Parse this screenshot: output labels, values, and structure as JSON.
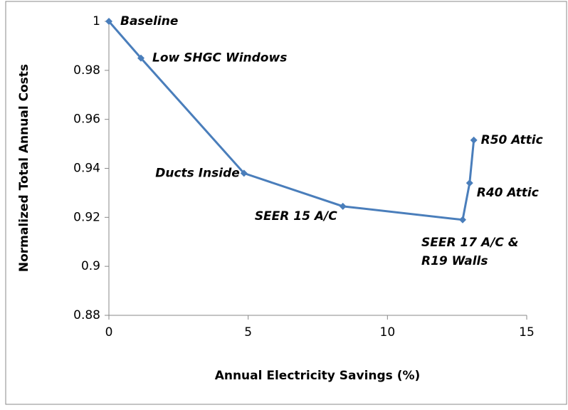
{
  "chart_data": {
    "type": "line",
    "x_label": "Annual Electricity Savings (%)",
    "y_label": "Normalized Total Annual Costs",
    "x": [
      0,
      1.15,
      4.85,
      8.4,
      12.7,
      12.95,
      13.1
    ],
    "series": [
      {
        "color": "#4a7ebb",
        "values": [
          1,
          0.985,
          0.938,
          0.9245,
          0.919,
          0.934,
          0.9515
        ]
      }
    ],
    "labels": [
      "Baseline",
      "Low SHGC Windows",
      "Ducts Inside",
      "SEER 15 A/C",
      "SEER 17 A/C &\nR19 Walls",
      "R40 Attic",
      "R50 Attic"
    ],
    "xlim": [
      0,
      15
    ],
    "xticks": [
      0,
      5,
      10,
      15
    ],
    "ylim": [
      0.88,
      1
    ],
    "yticks": [
      {
        "value": 0.88,
        "label": "0.88"
      },
      {
        "value": 0.9,
        "label": "0.9"
      },
      {
        "value": 0.92,
        "label": "0.92"
      },
      {
        "value": 0.94,
        "label": "0.94"
      },
      {
        "value": 0.96,
        "label": "0.96"
      },
      {
        "value": 0.98,
        "label": "0.98"
      },
      1
    ]
  }
}
